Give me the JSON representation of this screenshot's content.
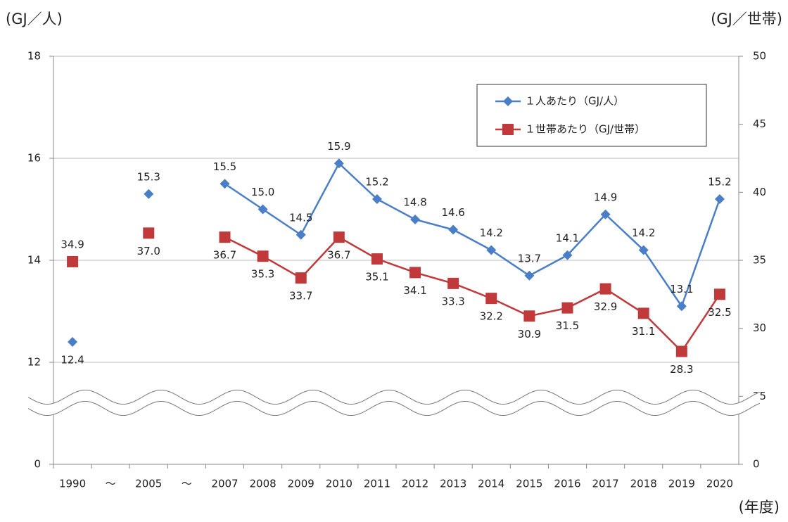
{
  "chart_data": {
    "type": "line",
    "y_label": "(GJ／人)",
    "y2_label": "(GJ／世帯)",
    "x_label": "(年度)",
    "categories": [
      "1990",
      "～",
      "2005",
      "～",
      "2007",
      "2008",
      "2009",
      "2010",
      "2011",
      "2012",
      "2013",
      "2014",
      "2015",
      "2016",
      "2017",
      "2018",
      "2019",
      "2020"
    ],
    "series": [
      {
        "name": "１人あたり（GJ/人）",
        "color": "#4a7ec6",
        "marker": "diamond",
        "values": [
          12.4,
          null,
          15.3,
          null,
          15.5,
          15.0,
          14.5,
          15.9,
          15.2,
          14.8,
          14.6,
          14.2,
          13.7,
          14.1,
          14.9,
          14.2,
          13.1,
          15.2
        ],
        "value_labels": [
          "12.4",
          null,
          "15.3",
          null,
          "15.5",
          "15.0",
          "14.5",
          "15.9",
          "15.2",
          "14.8",
          "14.6",
          "14.2",
          "13.7",
          "14.1",
          "14.9",
          "14.2",
          "13.1",
          "15.2"
        ]
      },
      {
        "name": "１世帯あたり（GJ/世帯）",
        "color": "#c0393b",
        "marker": "square",
        "axis": "y2",
        "values": [
          34.9,
          null,
          37.0,
          null,
          36.7,
          35.3,
          33.7,
          36.7,
          35.1,
          34.1,
          33.3,
          32.2,
          30.9,
          31.5,
          32.9,
          31.1,
          28.3,
          32.5
        ],
        "value_labels": [
          "34.9",
          null,
          "37.0",
          null,
          "36.7",
          "35.3",
          "33.7",
          "36.7",
          "35.1",
          "34.1",
          "33.3",
          "32.2",
          "30.9",
          "31.5",
          "32.9",
          "31.1",
          "28.3",
          "32.5"
        ]
      }
    ],
    "ylim": [
      0,
      18
    ],
    "yticks": [
      0,
      12,
      14,
      16,
      18
    ],
    "ybreak": 12,
    "y2lim": [
      0,
      50
    ],
    "y2ticks": [
      0,
      25,
      30,
      35,
      40,
      45,
      50
    ],
    "y2break": 25,
    "grid": true,
    "legend": "upper right"
  }
}
